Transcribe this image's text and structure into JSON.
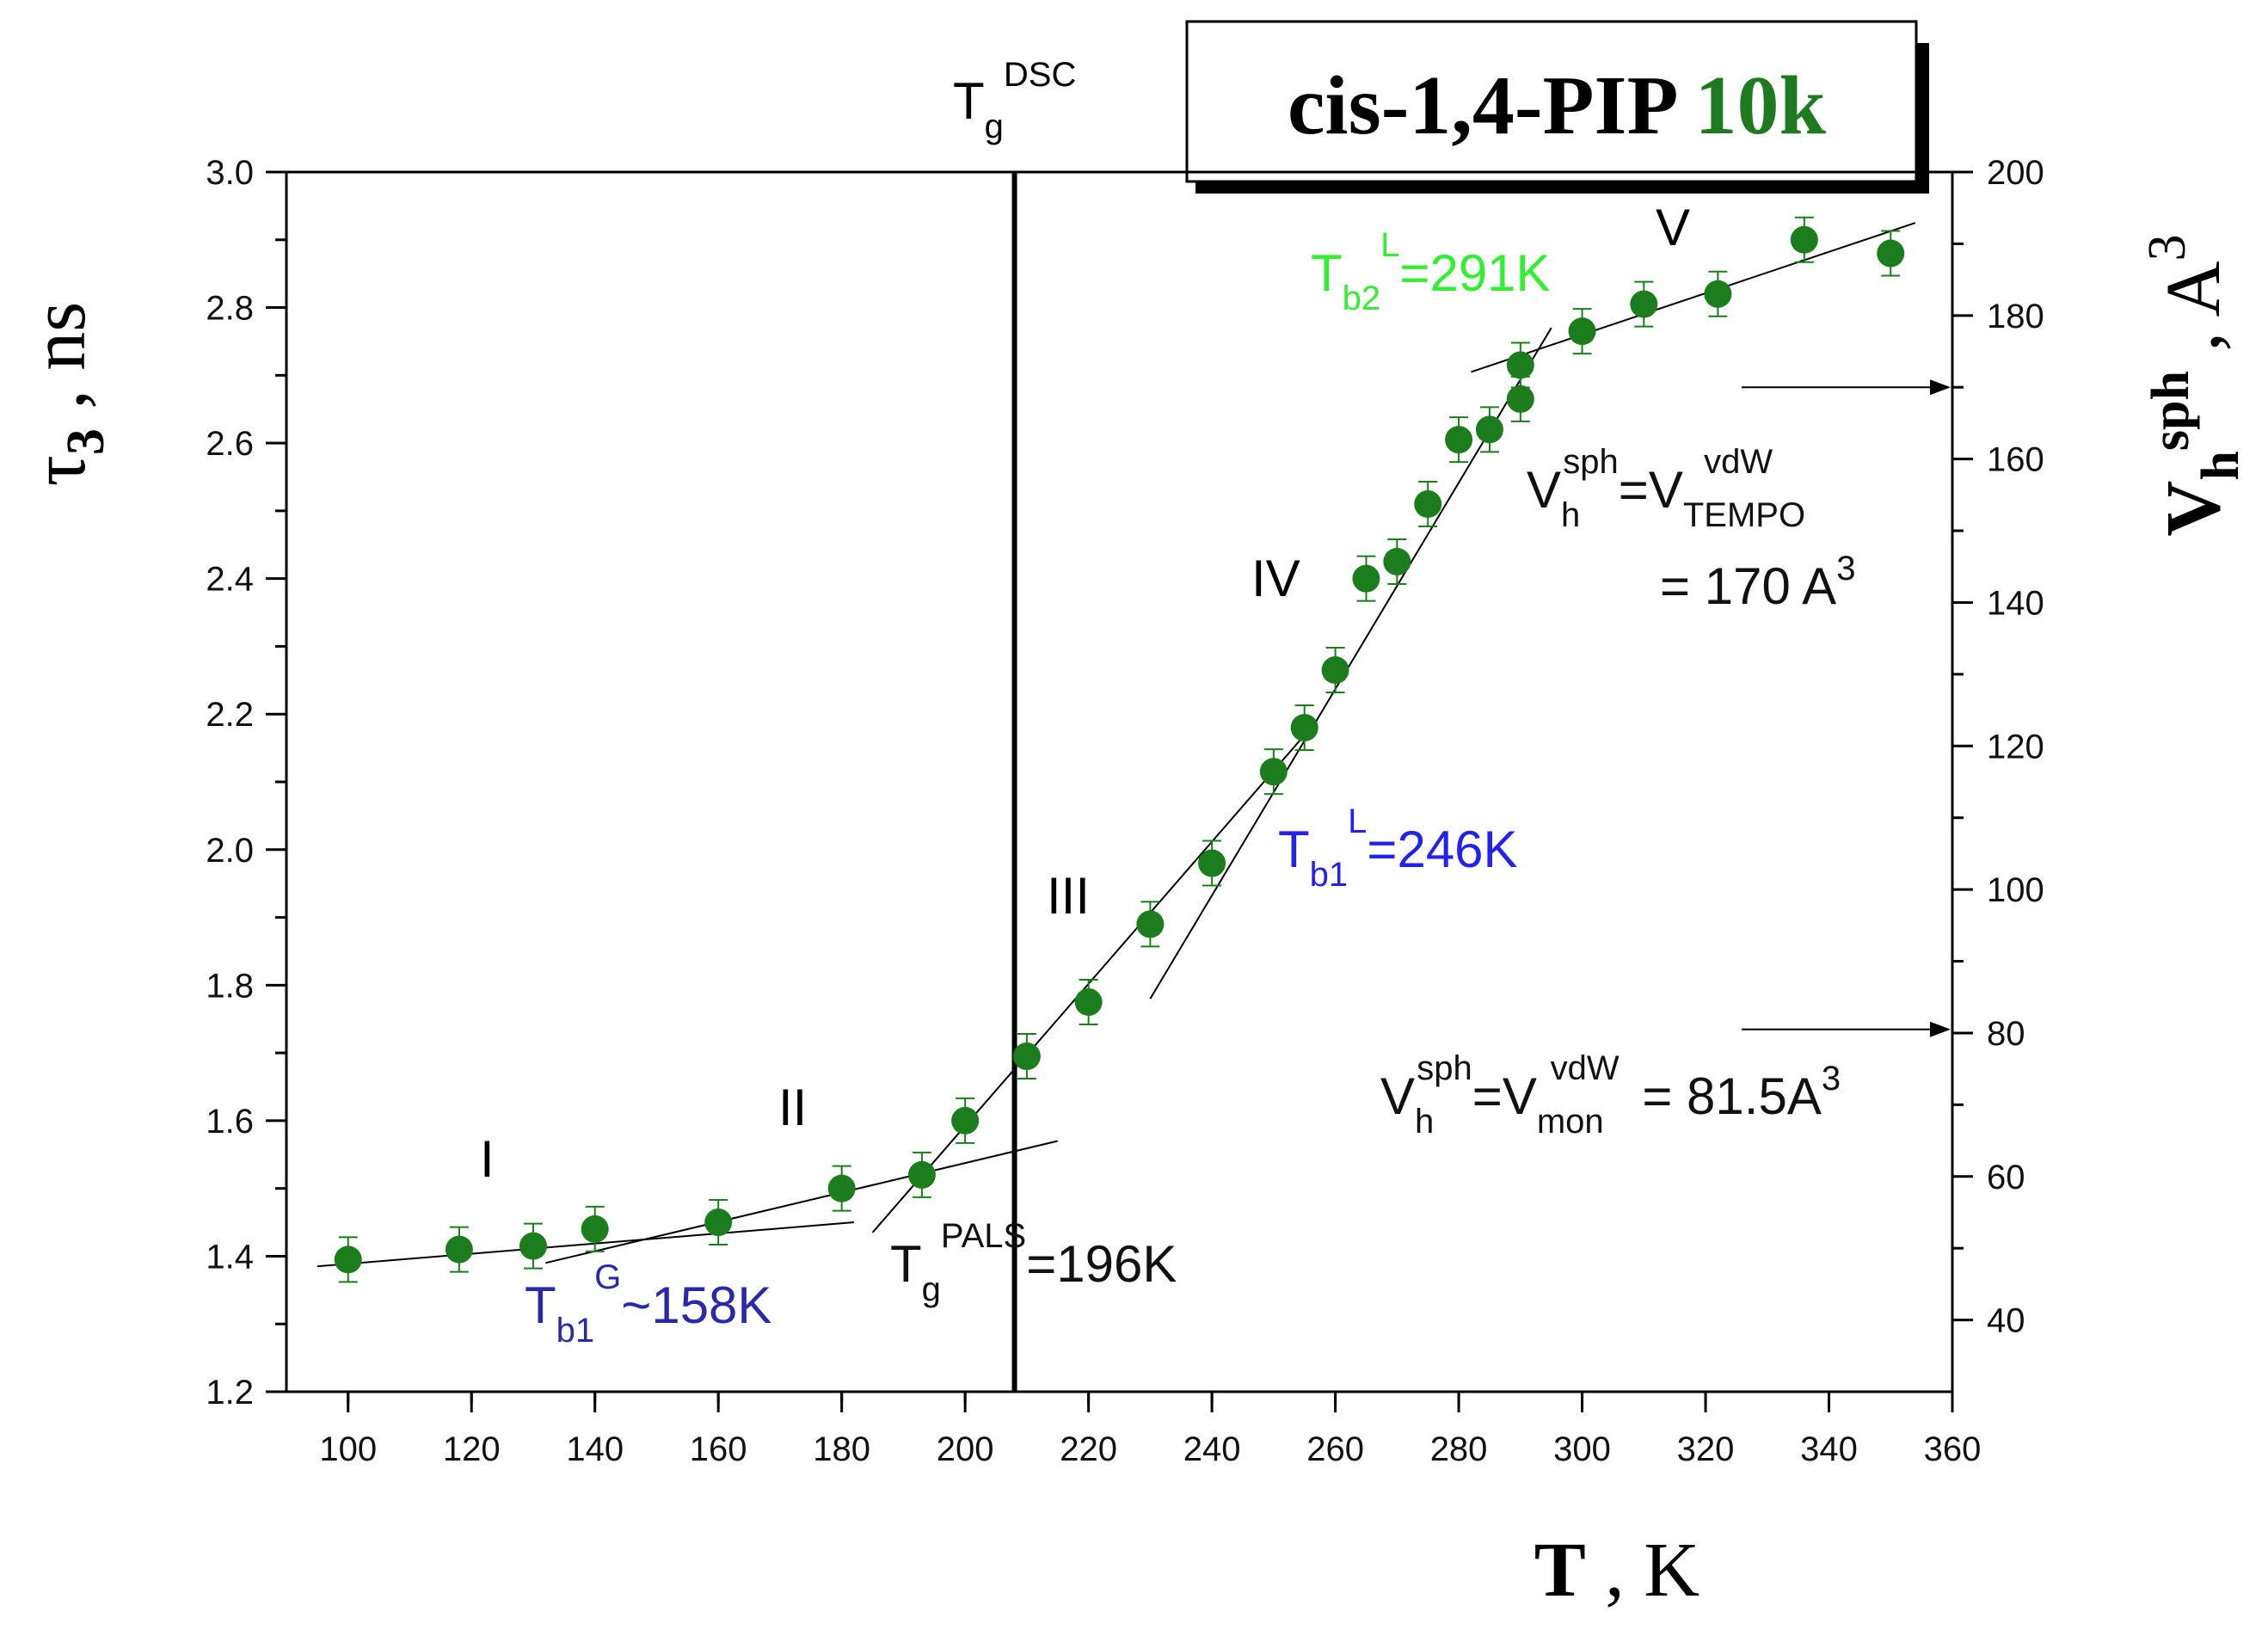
{
  "chart_data": {
    "type": "scatter",
    "title_main": "cis-1,4-PIP",
    "title_accent": "10k",
    "xlabel": {
      "symbol": "T",
      "unit": "K"
    },
    "ylabel_left": {
      "symbol": "τ",
      "subscript": "3",
      "unit": "ns"
    },
    "ylabel_right": {
      "symbol": "V",
      "subscript": "h",
      "superscript": "sph",
      "unit": "A",
      "unit_superscript": "3"
    },
    "xlim": [
      90,
      360
    ],
    "ylim": [
      1.2,
      3.0
    ],
    "ylim_right": [
      30,
      200
    ],
    "x_ticks": [
      "100",
      "120",
      "140",
      "160",
      "180",
      "200",
      "220",
      "240",
      "260",
      "280",
      "300",
      "320",
      "340",
      "360"
    ],
    "y_ticks": [
      "1.2",
      "1.4",
      "1.6",
      "1.8",
      "2.0",
      "2.2",
      "2.4",
      "2.6",
      "2.8",
      "3.0"
    ],
    "y_right_ticks": [
      "40",
      "60",
      "80",
      "100",
      "120",
      "140",
      "160",
      "180",
      "200"
    ],
    "series": [
      {
        "name": "tau3",
        "color": "#1b7d1b",
        "points": [
          [
            100,
            1.395
          ],
          [
            118,
            1.41
          ],
          [
            130,
            1.415
          ],
          [
            140,
            1.44
          ],
          [
            160,
            1.45
          ],
          [
            180,
            1.5
          ],
          [
            193,
            1.52
          ],
          [
            200,
            1.6
          ],
          [
            210,
            1.695
          ],
          [
            220,
            1.775
          ],
          [
            230,
            1.89
          ],
          [
            240,
            1.98
          ],
          [
            250,
            2.115
          ],
          [
            255,
            2.18
          ],
          [
            260,
            2.265
          ],
          [
            265,
            2.4
          ],
          [
            270,
            2.425
          ],
          [
            275,
            2.51
          ],
          [
            280,
            2.605
          ],
          [
            285,
            2.62
          ],
          [
            290,
            2.665
          ],
          [
            290,
            2.715
          ],
          [
            300,
            2.765
          ],
          [
            310,
            2.805
          ],
          [
            322,
            2.82
          ],
          [
            336,
            2.9
          ],
          [
            350,
            2.88
          ]
        ]
      }
    ],
    "fit_lines": [
      {
        "name": "fit-I",
        "x1": 95,
        "y1": 1.385,
        "x2": 182,
        "y2": 1.45
      },
      {
        "name": "fit-II",
        "x1": 132,
        "y1": 1.39,
        "x2": 215,
        "y2": 1.57
      },
      {
        "name": "fit-III",
        "x1": 185,
        "y1": 1.435,
        "x2": 257,
        "y2": 2.19
      },
      {
        "name": "fit-IV",
        "x1": 230,
        "y1": 1.78,
        "x2": 295,
        "y2": 2.77
      },
      {
        "name": "fit-V",
        "x1": 282,
        "y1": 2.705,
        "x2": 354,
        "y2": 2.925
      }
    ],
    "vertical_line": {
      "x": 208,
      "label": "T",
      "label_sub": "g",
      "label_sup": "DSC"
    },
    "regions": [
      "I",
      "II",
      "III",
      "IV",
      "V"
    ],
    "annotations": {
      "tb1g": {
        "main": "T",
        "sub": "b1",
        "sup": "G",
        "tail": "~158K",
        "color": "#2a2aa8"
      },
      "tgpals": {
        "main": "T",
        "sub": "g",
        "sup": "PALS",
        "tail": "=196K",
        "color": "#111111"
      },
      "tb1l": {
        "main": "T",
        "sub": "b1",
        "sup": "L",
        "tail": "=246K",
        "color": "#2222ee"
      },
      "tb2l": {
        "main": "T",
        "sub": "b2",
        "sup": "L",
        "tail": "=291K",
        "color": "#33ee33"
      },
      "vtempo": {
        "v": "V",
        "h": "h",
        "sph": "sph",
        "eq": "=V",
        "vdw": "vdW",
        "sub": "TEMPO",
        "line2": "= 170 A",
        "pow": "3"
      },
      "vmon": {
        "v": "V",
        "h": "h",
        "sph": "sph",
        "eq": "=V",
        "vdw": "vdW",
        "sub": "mon",
        "tail": " = 81.5A",
        "pow": "3"
      }
    },
    "arrows": [
      {
        "name": "arrow-170",
        "y_right": 170
      },
      {
        "name": "arrow-81",
        "y_right": 80.5
      }
    ]
  }
}
